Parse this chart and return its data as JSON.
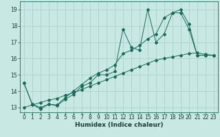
{
  "title": "",
  "xlabel": "Humidex (Indice chaleur)",
  "ylabel": "",
  "bg_color": "#c8e8e4",
  "grid_color": "#a8cccc",
  "line_color": "#1a6b5a",
  "xlim": [
    -0.5,
    23.5
  ],
  "ylim": [
    12.7,
    19.5
  ],
  "xticks": [
    0,
    1,
    2,
    3,
    4,
    5,
    6,
    7,
    8,
    9,
    10,
    11,
    12,
    13,
    14,
    15,
    16,
    17,
    18,
    19,
    20,
    21,
    22,
    23
  ],
  "yticks": [
    13,
    14,
    15,
    16,
    17,
    18,
    19
  ],
  "series1_x": [
    0,
    1,
    2,
    3,
    4,
    5,
    6,
    7,
    8,
    9,
    10,
    11,
    12,
    13,
    14,
    15,
    16,
    17,
    18,
    19,
    20,
    21,
    22,
    23
  ],
  "series1_y": [
    14.5,
    13.2,
    12.9,
    13.2,
    13.1,
    13.5,
    13.8,
    14.3,
    14.5,
    15.0,
    15.0,
    15.2,
    17.8,
    16.7,
    16.5,
    19.0,
    17.0,
    17.5,
    18.8,
    19.0,
    18.1,
    16.2,
    16.2,
    16.2
  ],
  "series2_x": [
    0,
    1,
    2,
    3,
    4,
    5,
    6,
    7,
    8,
    9,
    10,
    11,
    12,
    13,
    14,
    15,
    16,
    17,
    18,
    19,
    20,
    21,
    22,
    23
  ],
  "series2_y": [
    14.5,
    13.2,
    13.0,
    13.2,
    13.15,
    13.6,
    14.0,
    14.4,
    14.8,
    15.1,
    15.3,
    15.6,
    16.3,
    16.5,
    16.8,
    17.2,
    17.5,
    18.5,
    18.8,
    18.8,
    17.8,
    16.2,
    16.2,
    16.2
  ],
  "series3_x": [
    0,
    1,
    2,
    3,
    4,
    5,
    6,
    7,
    8,
    9,
    10,
    11,
    12,
    13,
    14,
    15,
    16,
    17,
    18,
    19,
    20,
    21,
    22,
    23
  ],
  "series3_y": [
    13.0,
    13.15,
    13.3,
    13.45,
    13.55,
    13.75,
    13.9,
    14.1,
    14.3,
    14.5,
    14.7,
    14.9,
    15.1,
    15.3,
    15.5,
    15.7,
    15.9,
    16.0,
    16.1,
    16.2,
    16.3,
    16.35,
    16.25,
    16.2
  ]
}
